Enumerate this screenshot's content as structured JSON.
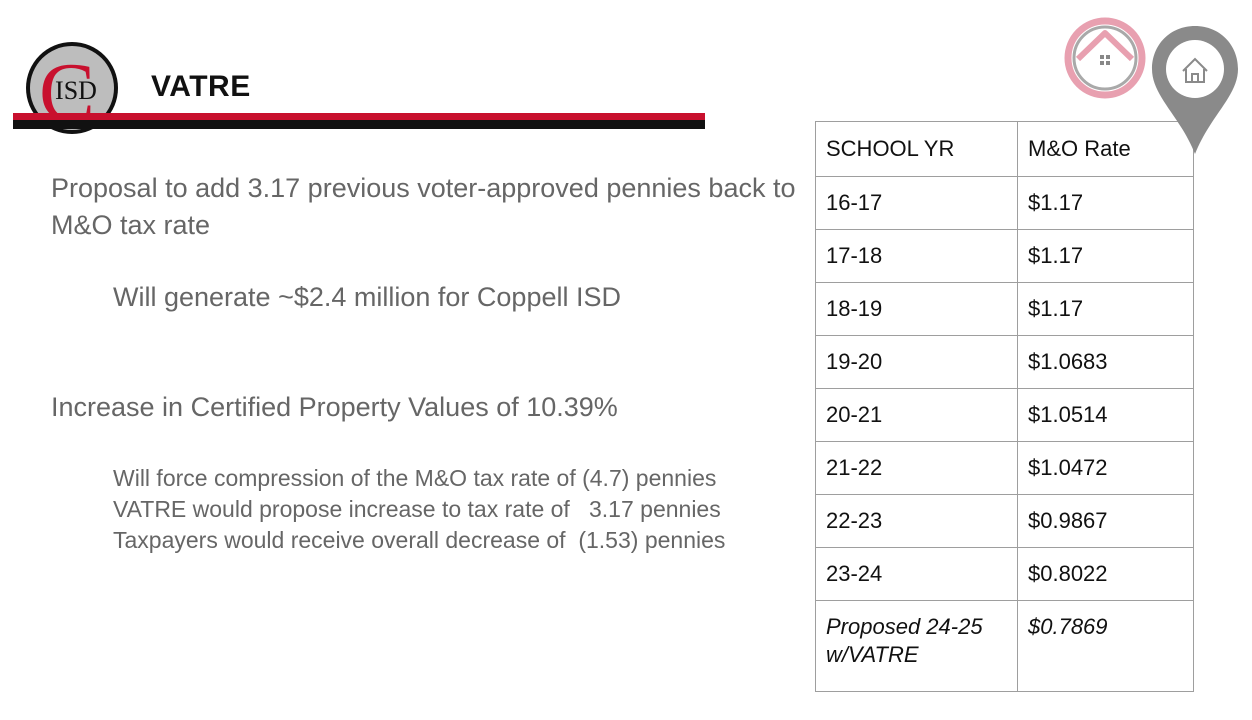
{
  "brand": {
    "logo_text": "ISD",
    "logo_letter": "C",
    "red": "#c8102e",
    "black": "#111111"
  },
  "page": {
    "title": "VATRE"
  },
  "content": {
    "p1": "Proposal to add 3.17 previous voter-approved pennies back to M&O tax rate",
    "p2": "Will generate ~$2.4 million for Coppell ISD",
    "p3": "Increase in Certified Property Values of 10.39%",
    "line1": "Will force compression of the M&O tax rate of (4.7) pennies",
    "line2": "VATRE would propose increase to tax rate of   3.17 pennies",
    "line3": "Taxpayers would receive overall decrease of  (1.53) pennies"
  },
  "table": {
    "headers": [
      "SCHOOL YR",
      "M&O Rate"
    ],
    "rows": [
      [
        "16-17",
        "$1.17"
      ],
      [
        "17-18",
        "$1.17"
      ],
      [
        "18-19",
        "$1.17"
      ],
      [
        "19-20",
        "$1.0683"
      ],
      [
        "20-21",
        "$1.0514"
      ],
      [
        "21-22",
        "$1.0472"
      ],
      [
        "22-23",
        "$0.9867"
      ],
      [
        "23-24",
        "$0.8022"
      ]
    ],
    "last_row": [
      "Proposed 24-25 w/VATRE",
      "$0.7869"
    ]
  },
  "icons": {
    "home_ring": "home-ring-icon",
    "location_pin": "location-pin-icon",
    "ring_color": "#e8a0b0",
    "pin_color": "#8a8a8a"
  }
}
